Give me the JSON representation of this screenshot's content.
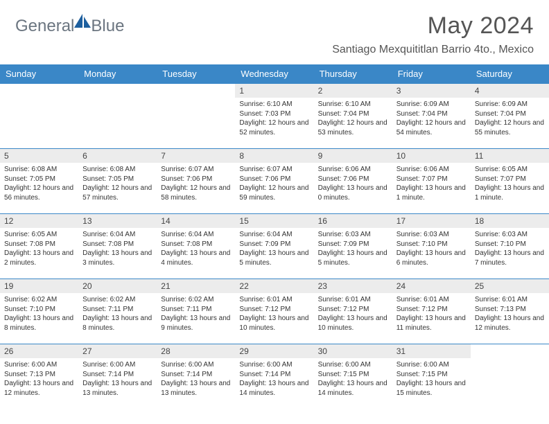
{
  "logo": {
    "word1": "General",
    "word2": "Blue"
  },
  "title": "May 2024",
  "location": "Santiago Mexquititlan Barrio 4to., Mexico",
  "colors": {
    "header_bg": "#3a87c7",
    "header_text": "#ffffff",
    "daynum_bg": "#ececec",
    "row_border": "#3a87c7",
    "logo_text": "#6b7580",
    "logo_icon": "#1d5f9e",
    "title_text": "#555555"
  },
  "daysOfWeek": [
    "Sunday",
    "Monday",
    "Tuesday",
    "Wednesday",
    "Thursday",
    "Friday",
    "Saturday"
  ],
  "labels": {
    "sunrise": "Sunrise:",
    "sunset": "Sunset:",
    "daylight": "Daylight:"
  },
  "weeks": [
    [
      null,
      null,
      null,
      {
        "n": "1",
        "sr": "6:10 AM",
        "ss": "7:03 PM",
        "dl": "12 hours and 52 minutes."
      },
      {
        "n": "2",
        "sr": "6:10 AM",
        "ss": "7:04 PM",
        "dl": "12 hours and 53 minutes."
      },
      {
        "n": "3",
        "sr": "6:09 AM",
        "ss": "7:04 PM",
        "dl": "12 hours and 54 minutes."
      },
      {
        "n": "4",
        "sr": "6:09 AM",
        "ss": "7:04 PM",
        "dl": "12 hours and 55 minutes."
      }
    ],
    [
      {
        "n": "5",
        "sr": "6:08 AM",
        "ss": "7:05 PM",
        "dl": "12 hours and 56 minutes."
      },
      {
        "n": "6",
        "sr": "6:08 AM",
        "ss": "7:05 PM",
        "dl": "12 hours and 57 minutes."
      },
      {
        "n": "7",
        "sr": "6:07 AM",
        "ss": "7:06 PM",
        "dl": "12 hours and 58 minutes."
      },
      {
        "n": "8",
        "sr": "6:07 AM",
        "ss": "7:06 PM",
        "dl": "12 hours and 59 minutes."
      },
      {
        "n": "9",
        "sr": "6:06 AM",
        "ss": "7:06 PM",
        "dl": "13 hours and 0 minutes."
      },
      {
        "n": "10",
        "sr": "6:06 AM",
        "ss": "7:07 PM",
        "dl": "13 hours and 1 minute."
      },
      {
        "n": "11",
        "sr": "6:05 AM",
        "ss": "7:07 PM",
        "dl": "13 hours and 1 minute."
      }
    ],
    [
      {
        "n": "12",
        "sr": "6:05 AM",
        "ss": "7:08 PM",
        "dl": "13 hours and 2 minutes."
      },
      {
        "n": "13",
        "sr": "6:04 AM",
        "ss": "7:08 PM",
        "dl": "13 hours and 3 minutes."
      },
      {
        "n": "14",
        "sr": "6:04 AM",
        "ss": "7:08 PM",
        "dl": "13 hours and 4 minutes."
      },
      {
        "n": "15",
        "sr": "6:04 AM",
        "ss": "7:09 PM",
        "dl": "13 hours and 5 minutes."
      },
      {
        "n": "16",
        "sr": "6:03 AM",
        "ss": "7:09 PM",
        "dl": "13 hours and 5 minutes."
      },
      {
        "n": "17",
        "sr": "6:03 AM",
        "ss": "7:10 PM",
        "dl": "13 hours and 6 minutes."
      },
      {
        "n": "18",
        "sr": "6:03 AM",
        "ss": "7:10 PM",
        "dl": "13 hours and 7 minutes."
      }
    ],
    [
      {
        "n": "19",
        "sr": "6:02 AM",
        "ss": "7:10 PM",
        "dl": "13 hours and 8 minutes."
      },
      {
        "n": "20",
        "sr": "6:02 AM",
        "ss": "7:11 PM",
        "dl": "13 hours and 8 minutes."
      },
      {
        "n": "21",
        "sr": "6:02 AM",
        "ss": "7:11 PM",
        "dl": "13 hours and 9 minutes."
      },
      {
        "n": "22",
        "sr": "6:01 AM",
        "ss": "7:12 PM",
        "dl": "13 hours and 10 minutes."
      },
      {
        "n": "23",
        "sr": "6:01 AM",
        "ss": "7:12 PM",
        "dl": "13 hours and 10 minutes."
      },
      {
        "n": "24",
        "sr": "6:01 AM",
        "ss": "7:12 PM",
        "dl": "13 hours and 11 minutes."
      },
      {
        "n": "25",
        "sr": "6:01 AM",
        "ss": "7:13 PM",
        "dl": "13 hours and 12 minutes."
      }
    ],
    [
      {
        "n": "26",
        "sr": "6:00 AM",
        "ss": "7:13 PM",
        "dl": "13 hours and 12 minutes."
      },
      {
        "n": "27",
        "sr": "6:00 AM",
        "ss": "7:14 PM",
        "dl": "13 hours and 13 minutes."
      },
      {
        "n": "28",
        "sr": "6:00 AM",
        "ss": "7:14 PM",
        "dl": "13 hours and 13 minutes."
      },
      {
        "n": "29",
        "sr": "6:00 AM",
        "ss": "7:14 PM",
        "dl": "13 hours and 14 minutes."
      },
      {
        "n": "30",
        "sr": "6:00 AM",
        "ss": "7:15 PM",
        "dl": "13 hours and 14 minutes."
      },
      {
        "n": "31",
        "sr": "6:00 AM",
        "ss": "7:15 PM",
        "dl": "13 hours and 15 minutes."
      },
      null
    ]
  ]
}
